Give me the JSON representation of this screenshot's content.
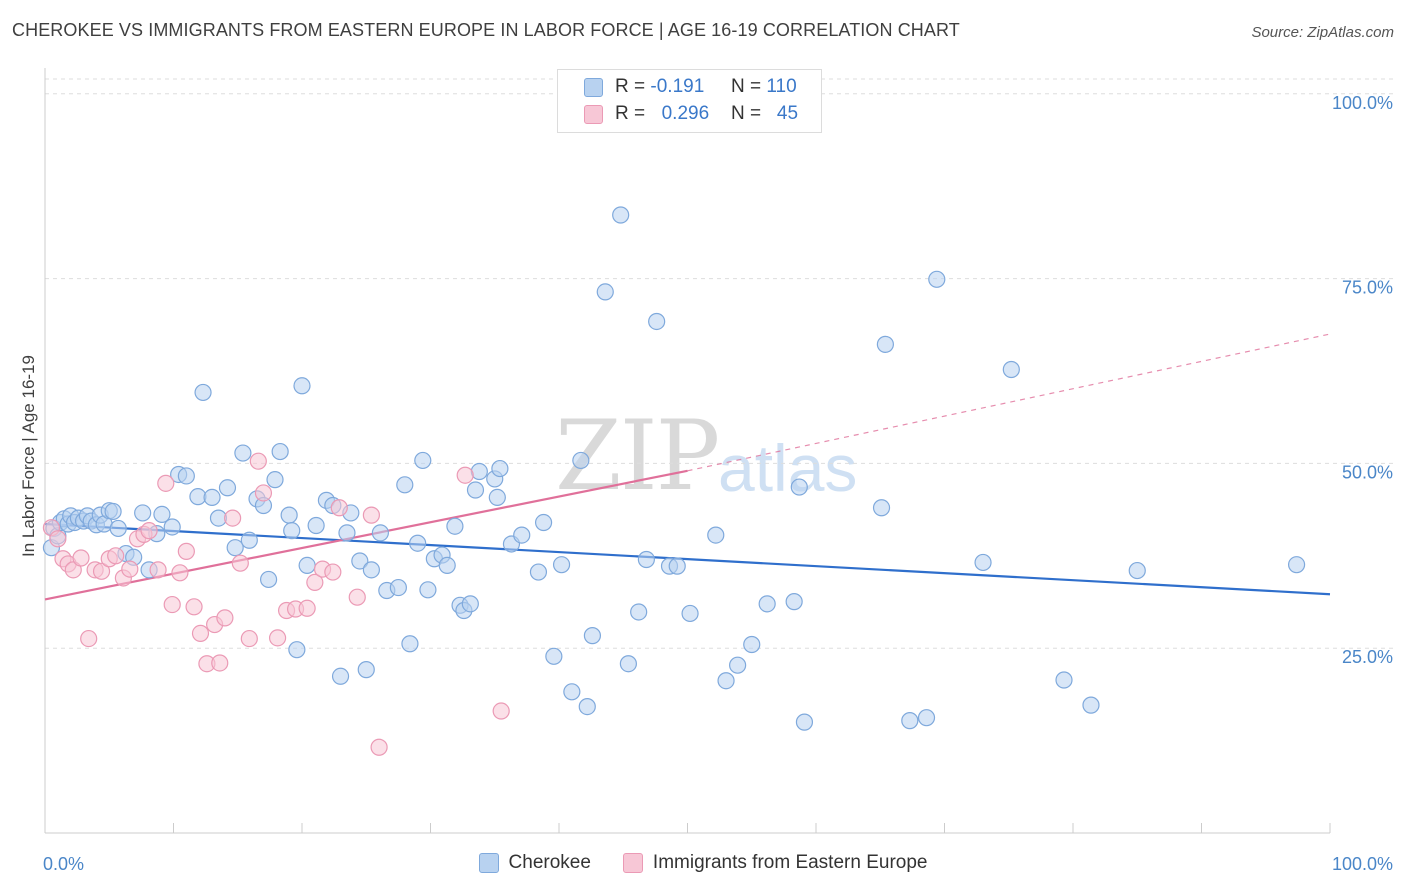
{
  "title": "CHEROKEE VS IMMIGRANTS FROM EASTERN EUROPE IN LABOR FORCE | AGE 16-19 CORRELATION CHART",
  "source": "Source: ZipAtlas.com",
  "watermark": {
    "zip": "ZIP",
    "atlas": "atlas"
  },
  "legend_box": {
    "rows": [
      {
        "r_label": "R =",
        "r_value": "-0.191",
        "n_label": "N =",
        "n_value": "110"
      },
      {
        "r_label": "R =",
        "r_value": "0.296",
        "n_label": "N =",
        "n_value": "45"
      }
    ]
  },
  "colors": {
    "cherokee_fill": "#b8d2f0",
    "cherokee_stroke": "#7fa9dc",
    "cherokee_line": "#2f6fcc",
    "immig_fill": "#f7c7d6",
    "immig_stroke": "#eb9ab5",
    "immig_line": "#e0709a",
    "grid": "#dddddd",
    "tick_text": "#4a86c8"
  },
  "chart_data": {
    "type": "scatter",
    "title": "CHEROKEE VS IMMIGRANTS FROM EASTERN EUROPE IN LABOR FORCE | AGE 16-19 CORRELATION CHART",
    "xlabel": "",
    "ylabel": "In Labor Force | Age 16-19",
    "xlim": [
      0,
      100
    ],
    "ylim": [
      0,
      102
    ],
    "x_tick_labels": [
      "0.0%",
      "100.0%"
    ],
    "y_ticks": [
      25,
      50,
      75,
      100
    ],
    "y_tick_labels": [
      "25.0%",
      "50.0%",
      "75.0%",
      "100.0%"
    ],
    "series": [
      {
        "name": "Cherokee",
        "trend": {
          "x": [
            0,
            100
          ],
          "y": [
            41.8,
            32.3
          ],
          "dashed_to": null
        },
        "points": [
          [
            0.5,
            38.6
          ],
          [
            0.7,
            41.2
          ],
          [
            1.0,
            40.2
          ],
          [
            1.2,
            42.0
          ],
          [
            1.5,
            42.5
          ],
          [
            1.8,
            41.8
          ],
          [
            2.0,
            42.9
          ],
          [
            2.3,
            42.0
          ],
          [
            2.6,
            42.6
          ],
          [
            3.0,
            42.2
          ],
          [
            3.3,
            42.9
          ],
          [
            3.6,
            42.2
          ],
          [
            4.0,
            41.7
          ],
          [
            4.3,
            43.0
          ],
          [
            4.6,
            41.8
          ],
          [
            5.0,
            43.6
          ],
          [
            5.3,
            43.5
          ],
          [
            5.7,
            41.2
          ],
          [
            6.3,
            37.8
          ],
          [
            6.9,
            37.3
          ],
          [
            7.6,
            43.3
          ],
          [
            8.1,
            35.6
          ],
          [
            8.7,
            40.5
          ],
          [
            9.1,
            43.1
          ],
          [
            9.9,
            41.4
          ],
          [
            10.4,
            48.5
          ],
          [
            11.0,
            48.3
          ],
          [
            11.9,
            45.5
          ],
          [
            12.3,
            59.6
          ],
          [
            13.0,
            45.4
          ],
          [
            13.5,
            42.6
          ],
          [
            14.2,
            46.7
          ],
          [
            14.8,
            38.6
          ],
          [
            15.4,
            51.4
          ],
          [
            15.9,
            39.6
          ],
          [
            16.5,
            45.2
          ],
          [
            17.0,
            44.3
          ],
          [
            17.4,
            34.3
          ],
          [
            17.9,
            47.8
          ],
          [
            18.3,
            51.6
          ],
          [
            19.0,
            43.0
          ],
          [
            19.2,
            40.9
          ],
          [
            19.6,
            24.8
          ],
          [
            20.0,
            60.5
          ],
          [
            20.4,
            36.2
          ],
          [
            21.1,
            41.6
          ],
          [
            21.9,
            45.0
          ],
          [
            22.4,
            44.3
          ],
          [
            23.0,
            21.2
          ],
          [
            23.5,
            40.6
          ],
          [
            23.8,
            43.3
          ],
          [
            24.5,
            36.8
          ],
          [
            25.0,
            22.1
          ],
          [
            25.4,
            35.6
          ],
          [
            26.1,
            40.6
          ],
          [
            26.6,
            32.8
          ],
          [
            27.5,
            33.2
          ],
          [
            28.0,
            47.1
          ],
          [
            28.4,
            25.6
          ],
          [
            29.0,
            39.2
          ],
          [
            29.4,
            50.4
          ],
          [
            29.8,
            32.9
          ],
          [
            30.3,
            37.1
          ],
          [
            30.9,
            37.6
          ],
          [
            31.3,
            36.2
          ],
          [
            31.9,
            41.5
          ],
          [
            32.3,
            30.8
          ],
          [
            32.6,
            30.1
          ],
          [
            33.1,
            31.0
          ],
          [
            33.5,
            46.4
          ],
          [
            33.8,
            48.9
          ],
          [
            35.0,
            47.9
          ],
          [
            35.4,
            49.3
          ],
          [
            35.2,
            45.4
          ],
          [
            36.3,
            39.1
          ],
          [
            37.1,
            40.3
          ],
          [
            38.4,
            35.3
          ],
          [
            38.8,
            42.0
          ],
          [
            39.6,
            23.9
          ],
          [
            40.2,
            36.3
          ],
          [
            41.0,
            19.1
          ],
          [
            41.7,
            50.4
          ],
          [
            42.2,
            17.1
          ],
          [
            42.6,
            26.7
          ],
          [
            43.6,
            73.2
          ],
          [
            44.8,
            83.6
          ],
          [
            45.4,
            22.9
          ],
          [
            46.2,
            29.9
          ],
          [
            46.8,
            37.0
          ],
          [
            47.6,
            69.2
          ],
          [
            48.6,
            36.1
          ],
          [
            49.2,
            36.1
          ],
          [
            50.2,
            29.7
          ],
          [
            52.2,
            40.3
          ],
          [
            53.0,
            20.6
          ],
          [
            53.9,
            22.7
          ],
          [
            55.0,
            25.5
          ],
          [
            56.2,
            31.0
          ],
          [
            58.3,
            31.3
          ],
          [
            58.7,
            46.8
          ],
          [
            59.1,
            15.0
          ],
          [
            65.1,
            44.0
          ],
          [
            65.4,
            66.1
          ],
          [
            67.3,
            15.2
          ],
          [
            68.6,
            15.6
          ],
          [
            69.4,
            74.9
          ],
          [
            73.0,
            36.6
          ],
          [
            75.2,
            62.7
          ],
          [
            79.3,
            20.7
          ],
          [
            81.4,
            17.3
          ],
          [
            97.4,
            36.3
          ],
          [
            85.0,
            35.5
          ]
        ]
      },
      {
        "name": "Immigrants from Eastern Europe",
        "trend": {
          "x": [
            0,
            50
          ],
          "y": [
            31.6,
            49.0
          ],
          "dashed_to": [
            100,
            67.5
          ]
        },
        "points": [
          [
            0.5,
            41.3
          ],
          [
            1.0,
            39.8
          ],
          [
            1.4,
            37.1
          ],
          [
            1.8,
            36.4
          ],
          [
            2.2,
            35.6
          ],
          [
            2.8,
            37.2
          ],
          [
            3.4,
            26.3
          ],
          [
            3.9,
            35.6
          ],
          [
            4.4,
            35.4
          ],
          [
            5.0,
            37.1
          ],
          [
            5.5,
            37.5
          ],
          [
            6.1,
            34.5
          ],
          [
            6.6,
            35.7
          ],
          [
            7.2,
            39.8
          ],
          [
            7.7,
            40.4
          ],
          [
            8.1,
            40.9
          ],
          [
            8.8,
            35.6
          ],
          [
            9.4,
            47.3
          ],
          [
            9.9,
            30.9
          ],
          [
            10.5,
            35.2
          ],
          [
            11.0,
            38.1
          ],
          [
            11.6,
            30.6
          ],
          [
            12.1,
            27.0
          ],
          [
            12.6,
            22.9
          ],
          [
            13.2,
            28.2
          ],
          [
            13.6,
            23.0
          ],
          [
            14.0,
            29.1
          ],
          [
            14.6,
            42.6
          ],
          [
            15.2,
            36.5
          ],
          [
            15.9,
            26.3
          ],
          [
            16.6,
            50.3
          ],
          [
            17.0,
            46.0
          ],
          [
            18.1,
            26.4
          ],
          [
            18.8,
            30.1
          ],
          [
            19.5,
            30.3
          ],
          [
            20.4,
            30.4
          ],
          [
            21.0,
            33.9
          ],
          [
            21.6,
            35.7
          ],
          [
            22.4,
            35.3
          ],
          [
            22.9,
            44.0
          ],
          [
            24.3,
            31.9
          ],
          [
            26.0,
            11.6
          ],
          [
            32.7,
            48.4
          ],
          [
            35.5,
            16.5
          ],
          [
            25.4,
            43.0
          ]
        ]
      }
    ]
  },
  "axis": {
    "ylabel": "In Labor Force | Age 16-19",
    "x_left": "0.0%",
    "x_right": "100.0%",
    "y_labels": [
      "25.0%",
      "50.0%",
      "75.0%",
      "100.0%"
    ]
  },
  "bottom_legend": [
    "Cherokee",
    "Immigrants from Eastern Europe"
  ]
}
